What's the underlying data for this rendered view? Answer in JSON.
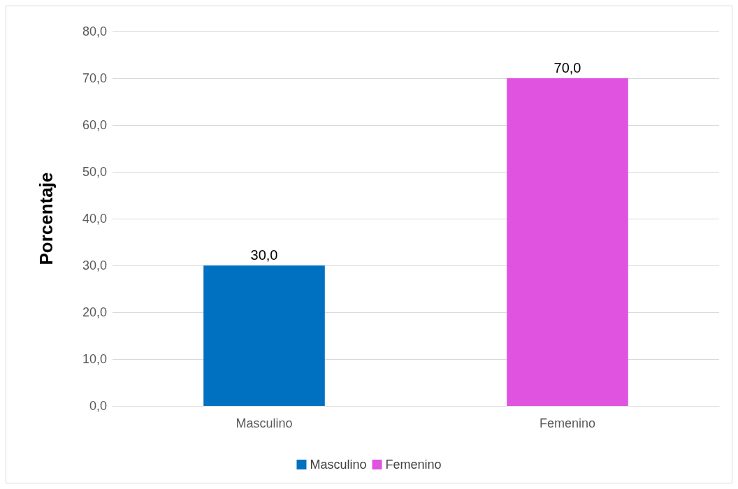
{
  "chart_data": {
    "type": "bar",
    "ylabel": "Porcentaje",
    "categories": [
      "Masculino",
      "Femenino"
    ],
    "series": [
      {
        "name": "Masculino",
        "color": "#0070c0",
        "values": [
          30,
          null
        ],
        "value_labels": [
          "30,0",
          null
        ]
      },
      {
        "name": "Femenino",
        "color": "#e052e0",
        "values": [
          null,
          70
        ],
        "value_labels": [
          null,
          "70,0"
        ]
      }
    ],
    "ylim": [
      0,
      80
    ],
    "yticks": [
      {
        "value": 0,
        "label": "0,0"
      },
      {
        "value": 10,
        "label": "10,0"
      },
      {
        "value": 20,
        "label": "20,0"
      },
      {
        "value": 30,
        "label": "30,0"
      },
      {
        "value": 40,
        "label": "40,0"
      },
      {
        "value": 50,
        "label": "50,0"
      },
      {
        "value": 60,
        "label": "60,0"
      },
      {
        "value": 70,
        "label": "70,0"
      },
      {
        "value": 80,
        "label": "80,0"
      }
    ],
    "grid": "y",
    "legend": "bottom"
  }
}
